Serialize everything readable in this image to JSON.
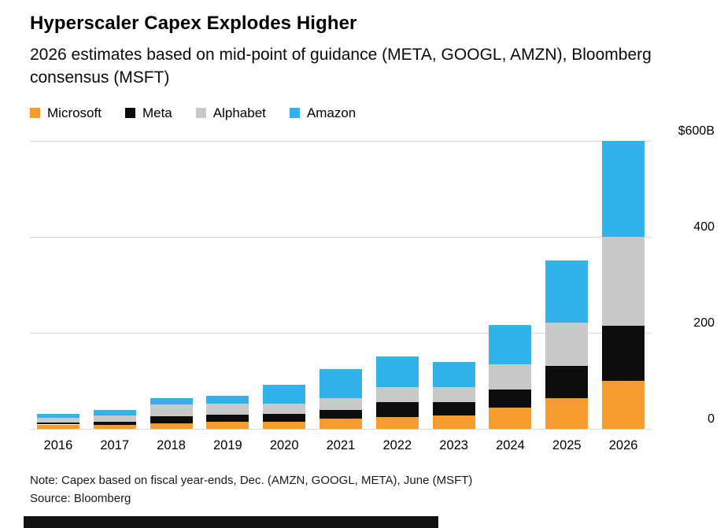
{
  "header": {
    "title": "Hyperscaler Capex Explodes Higher",
    "subtitle": "2026 estimates based on mid-point of guidance (META, GOOGL, AMZN), Bloomberg consensus (MSFT)"
  },
  "colors": {
    "microsoft": "#F79B2E",
    "meta": "#0D0D0D",
    "alphabet": "#C9C9C9",
    "amazon": "#30B3E8",
    "gridline": "#D8D8D8"
  },
  "legend": [
    {
      "label": "Microsoft",
      "color_key": "microsoft"
    },
    {
      "label": "Meta",
      "color_key": "meta"
    },
    {
      "label": "Alphabet",
      "color_key": "alphabet"
    },
    {
      "label": "Amazon",
      "color_key": "amazon"
    }
  ],
  "chart_data": {
    "type": "bar",
    "stacked": true,
    "title": "Hyperscaler Capex Explodes Higher",
    "subtitle": "2026 estimates based on mid-point of guidance (META, GOOGL, AMZN), Bloomberg consensus (MSFT)",
    "unit": "$B",
    "categories": [
      "2016",
      "2017",
      "2018",
      "2019",
      "2020",
      "2021",
      "2022",
      "2023",
      "2024",
      "2025",
      "2026"
    ],
    "series": [
      {
        "name": "Microsoft",
        "color_key": "microsoft",
        "values": [
          9,
          8,
          12,
          14,
          15.5,
          20.5,
          24,
          28,
          44.5,
          64.5,
          100
        ]
      },
      {
        "name": "Meta",
        "color_key": "meta",
        "values": [
          4.5,
          7,
          14,
          15,
          15,
          19,
          31.5,
          27.5,
          37,
          66,
          115
        ]
      },
      {
        "name": "Alphabet",
        "color_key": "alphabet",
        "values": [
          10,
          13,
          25,
          23.5,
          22,
          24.5,
          31.5,
          32,
          52.5,
          91,
          185
        ]
      },
      {
        "name": "Amazon",
        "color_key": "amazon",
        "values": [
          7,
          12,
          13,
          17,
          40,
          61,
          63.5,
          52.5,
          83,
          130,
          200
        ]
      }
    ],
    "y_ticks": [
      {
        "label": "$600B",
        "value": 600
      },
      {
        "label": "400",
        "value": 400
      },
      {
        "label": "200",
        "value": 200
      },
      {
        "label": "0",
        "value": 0
      }
    ],
    "ylim": [
      0,
      620
    ],
    "grid": true,
    "legend_position": "top"
  },
  "footer": {
    "note": "Note: Capex based on fiscal year-ends, Dec. (AMZN, GOOGL, META), June (MSFT)",
    "source": "Source: Bloomberg"
  }
}
